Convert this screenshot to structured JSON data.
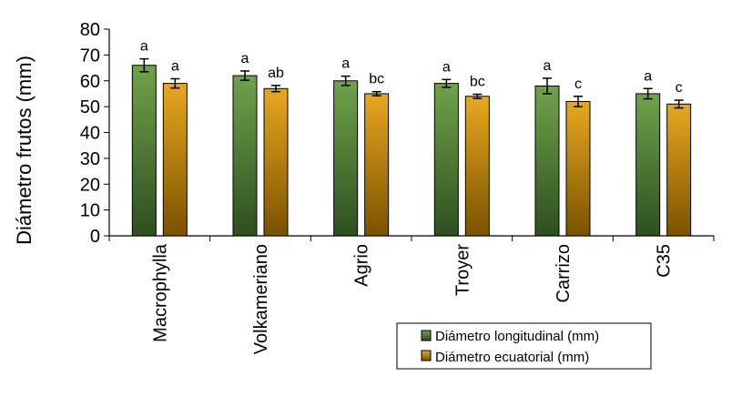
{
  "chart_data": {
    "type": "bar",
    "ylabel": "Diámetro frutos (mm)",
    "xlabel": "",
    "ylim": [
      0,
      80
    ],
    "yticks": [
      0,
      10,
      20,
      30,
      40,
      50,
      60,
      70,
      80
    ],
    "categories": [
      "Macrophylla",
      "Volkameriano",
      "Agrio",
      "Troyer",
      "Carrizo",
      "C35"
    ],
    "series": [
      {
        "name": "Diámetro longitudinal (mm)",
        "values": [
          66,
          62,
          60,
          59,
          58,
          55
        ],
        "errors": [
          2.5,
          1.8,
          1.8,
          1.5,
          3.0,
          2.0
        ],
        "labels": [
          "a",
          "a",
          "a",
          "a",
          "a",
          "a"
        ],
        "color_top": "#6fa34a",
        "color_bottom": "#2e4f1f"
      },
      {
        "name": "Diámetro ecuatorial (mm)",
        "values": [
          59,
          57,
          55,
          54,
          52,
          51
        ],
        "errors": [
          1.8,
          1.2,
          0.8,
          0.8,
          2.0,
          1.5
        ],
        "labels": [
          "a",
          "ab",
          "bc",
          "bc",
          "c",
          "c"
        ],
        "color_top": "#e8a820",
        "color_bottom": "#7a5200"
      }
    ],
    "grid": false,
    "legend_position": "bottom-right"
  }
}
